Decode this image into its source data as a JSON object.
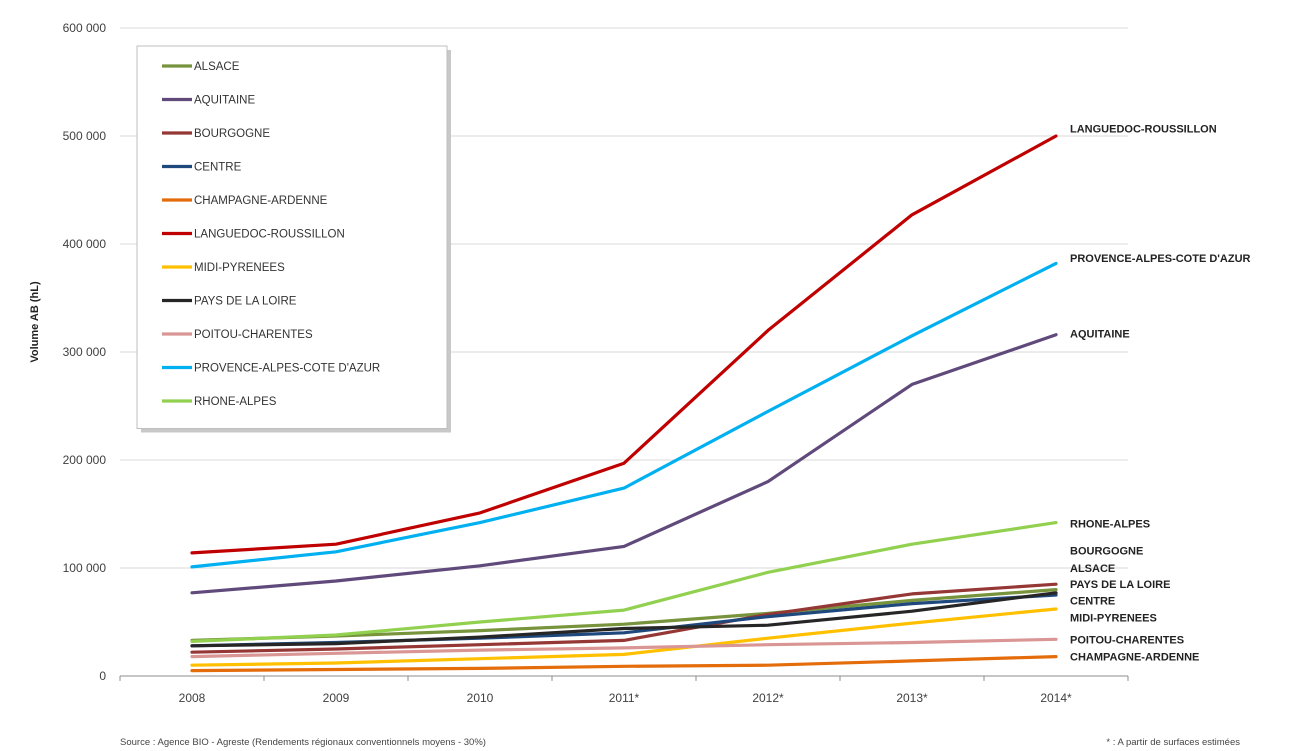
{
  "chart_data": {
    "type": "line",
    "ylabel": "Volume AB (hL)",
    "x": [
      "2008",
      "2009",
      "2010",
      "2011*",
      "2012*",
      "2013*",
      "2014*"
    ],
    "ylim": [
      0,
      600000
    ],
    "yticks": [
      0,
      100000,
      200000,
      300000,
      400000,
      500000,
      600000
    ],
    "ytick_labels": [
      "0",
      "100 000",
      "200 000",
      "300 000",
      "400 000",
      "500 000",
      "600 000"
    ],
    "grid": "horizontal",
    "legend_position": "top-left",
    "series": [
      {
        "name": "ALSACE",
        "color": "#77933C",
        "values": [
          33000,
          37000,
          42000,
          48000,
          58000,
          70000,
          80000
        ]
      },
      {
        "name": "AQUITAINE",
        "color": "#604A7B",
        "values": [
          77000,
          88000,
          102000,
          120000,
          180000,
          270000,
          316000
        ]
      },
      {
        "name": "BOURGOGNE",
        "color": "#953735",
        "values": [
          22000,
          25000,
          29000,
          33000,
          57000,
          76000,
          85000
        ]
      },
      {
        "name": "CENTRE",
        "color": "#1F497D",
        "values": [
          28000,
          31000,
          35000,
          40000,
          55000,
          67000,
          75000
        ]
      },
      {
        "name": "CHAMPAGNE-ARDENNE",
        "color": "#E46C0A",
        "values": [
          5000,
          6000,
          7000,
          9000,
          10000,
          14000,
          18000
        ]
      },
      {
        "name": "LANGUEDOC-ROUSSILLON",
        "color": "#C00000",
        "values": [
          114000,
          122000,
          151000,
          197000,
          320000,
          427000,
          500000
        ]
      },
      {
        "name": "MIDI-PYRENEES",
        "color": "#FFC000",
        "values": [
          10000,
          12000,
          16000,
          20000,
          35000,
          49000,
          62000
        ]
      },
      {
        "name": "PAYS DE LA LOIRE",
        "color": "#262626",
        "values": [
          28000,
          30000,
          36000,
          44000,
          47000,
          60000,
          77000
        ]
      },
      {
        "name": "POITOU-CHARENTES",
        "color": "#D99694",
        "values": [
          18000,
          21000,
          24000,
          26000,
          29000,
          31000,
          34000
        ]
      },
      {
        "name": "PROVENCE-ALPES-COTE D'AZUR",
        "color": "#00B0F0",
        "values": [
          101000,
          115000,
          142000,
          174000,
          245000,
          315000,
          382000
        ]
      },
      {
        "name": "RHONE-ALPES",
        "color": "#92D050",
        "values": [
          32000,
          38000,
          50000,
          61000,
          96000,
          122000,
          142000
        ]
      }
    ],
    "end_labels": [
      {
        "text": "LANGUEDOC-ROUSSILLON",
        "series": "LANGUEDOC-ROUSSILLON",
        "y": 507000
      },
      {
        "text": "PROVENCE-ALPES-COTE D'AZUR",
        "series": "PROVENCE-ALPES-COTE D'AZUR",
        "y": 387000
      },
      {
        "text": "AQUITAINE",
        "series": "AQUITAINE",
        "y": 317000
      },
      {
        "text": "RHONE-ALPES",
        "series": "RHONE-ALPES",
        "y": 141000
      },
      {
        "text": "BOURGOGNE",
        "series": "BOURGOGNE",
        "y": 116000
      },
      {
        "text": "ALSACE",
        "series": "ALSACE",
        "y": 100000
      },
      {
        "text": "PAYS DE LA LOIRE",
        "series": "PAYS DE LA LOIRE",
        "y": 85000
      },
      {
        "text": "CENTRE",
        "series": "CENTRE",
        "y": 70000
      },
      {
        "text": "MIDI-PYRENEES",
        "series": "MIDI-PYRENEES",
        "y": 54000
      },
      {
        "text": "POITOU-CHARENTES",
        "series": "POITOU-CHARENTES",
        "y": 34000
      },
      {
        "text": "CHAMPAGNE-ARDENNE",
        "series": "CHAMPAGNE-ARDENNE",
        "y": 18000
      }
    ]
  },
  "footnotes": {
    "source": "Source : Agence BIO - Agreste (Rendements régionaux conventionnels moyens - 30%)",
    "note": "* : A partir de surfaces estimées"
  }
}
